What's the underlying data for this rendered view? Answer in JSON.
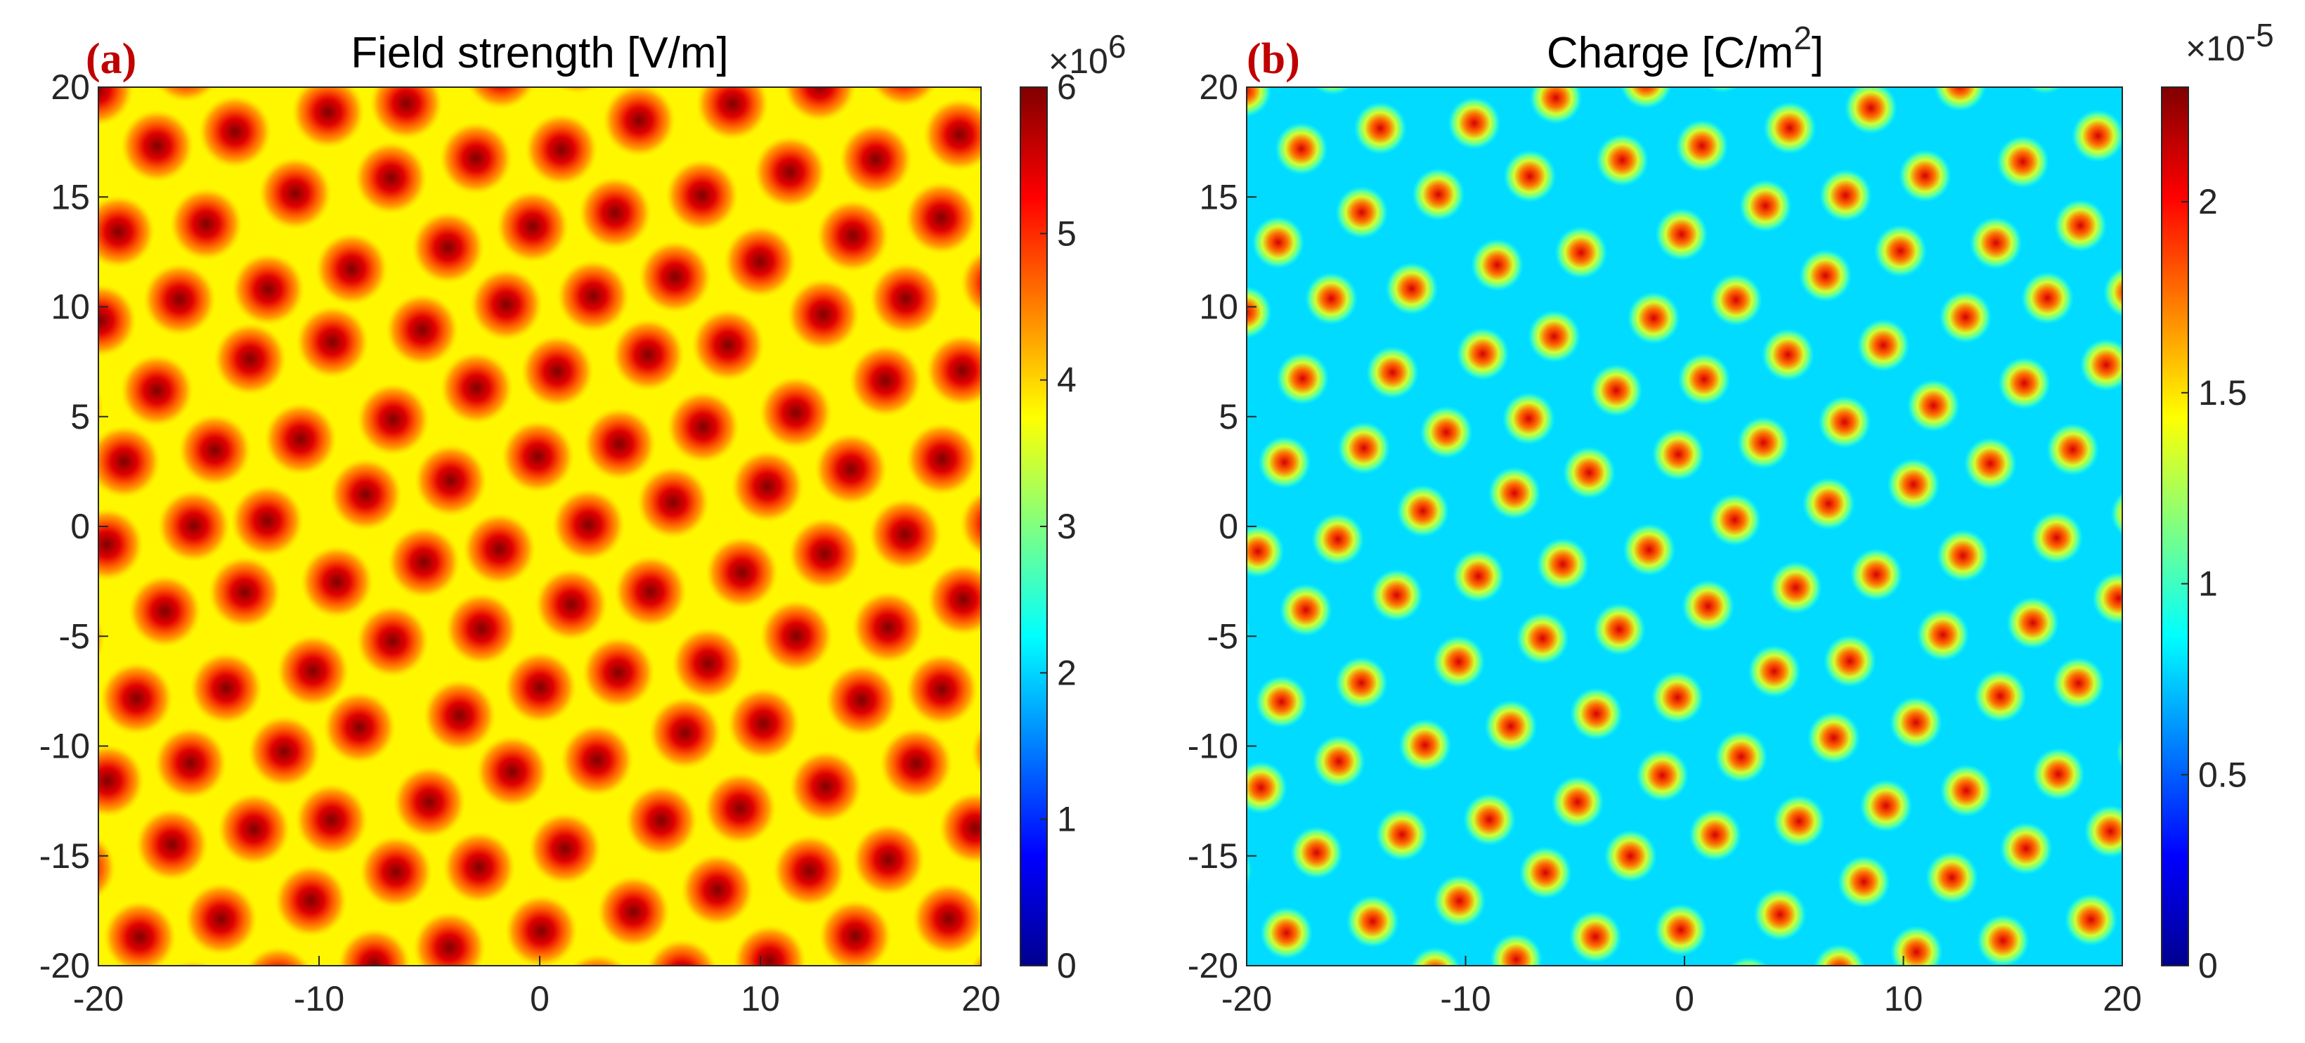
{
  "chart_data": [
    {
      "type": "heatmap",
      "panel_label": "(a)",
      "title": "Field strength [V/m]",
      "title_parts": {
        "main": "Field strength [V/m]",
        "superscript": ""
      },
      "x_ticks": [
        "-20",
        "-10",
        "0",
        "10",
        "20"
      ],
      "y_ticks": [
        "20",
        "15",
        "10",
        "5",
        "0",
        "-5",
        "-10",
        "-15",
        "-20"
      ],
      "xlim": [
        -20,
        20
      ],
      "ylim": [
        -20,
        20
      ],
      "colorbar": {
        "exponent_text": "×10",
        "exponent_power": "6",
        "ticks": [
          "6",
          "5",
          "4",
          "3",
          "2",
          "1",
          "0"
        ],
        "range": [
          0,
          6
        ]
      },
      "background_value": 3.8,
      "peak_value": 6.0,
      "spot_sigma": 0.75,
      "spot_grid": {
        "spacing": 4.0,
        "angle_deg": 12,
        "origin": [
          -1.5,
          -0.8
        ],
        "jitter": 0.35,
        "seed": 7
      }
    },
    {
      "type": "heatmap",
      "panel_label": "(b)",
      "title": "Charge [C/m2]",
      "title_parts": {
        "main": "Charge [C/m",
        "superscript": "2",
        "suffix": "]"
      },
      "x_ticks": [
        "-20",
        "-10",
        "0",
        "10",
        "20"
      ],
      "y_ticks": [
        "20",
        "15",
        "10",
        "5",
        "0",
        "-5",
        "-10",
        "-15",
        "-20"
      ],
      "xlim": [
        -20,
        20
      ],
      "ylim": [
        -20,
        20
      ],
      "colorbar": {
        "exponent_text": "×10",
        "exponent_power": "-5",
        "ticks": [
          "2",
          "1.5",
          "1",
          "0.5",
          "0"
        ],
        "tick_values": [
          2,
          1.5,
          1,
          0.5,
          0
        ],
        "range": [
          0,
          2.3
        ]
      },
      "background_value": 0.78,
      "peak_value": 2.1,
      "spot_sigma": 0.55,
      "spot_grid": {
        "spacing": 4.0,
        "angle_deg": 12,
        "origin": [
          -1.5,
          -0.8
        ],
        "jitter": 0.35,
        "seed": 11
      }
    }
  ],
  "colormap": [
    "#00008f",
    "#0000ff",
    "#0080ff",
    "#00ffff",
    "#80ff80",
    "#ffff00",
    "#ff8000",
    "#ff0000",
    "#800000"
  ]
}
